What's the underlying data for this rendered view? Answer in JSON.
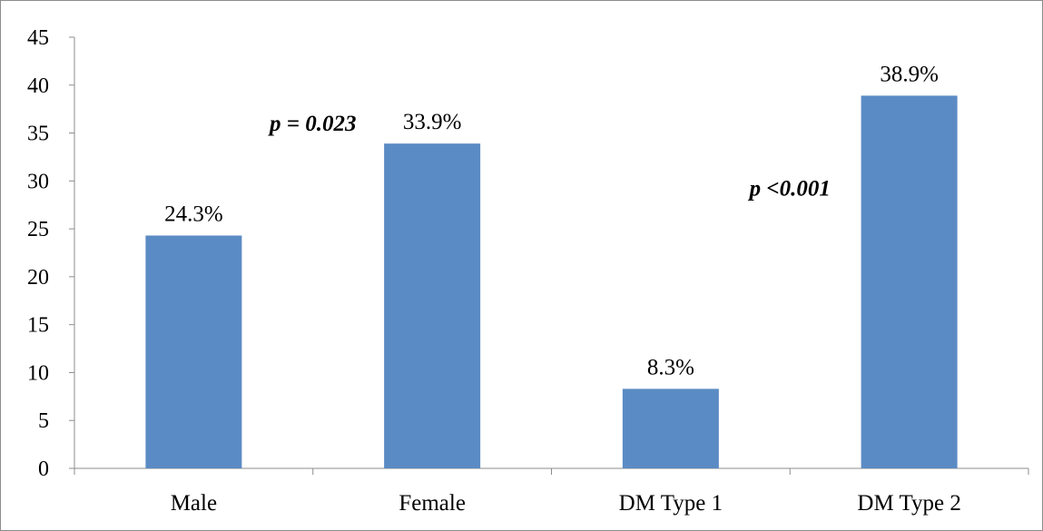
{
  "chart_data": {
    "type": "bar",
    "title": "",
    "xlabel": "",
    "ylabel": "",
    "categories": [
      "Male",
      "Female",
      "DM Type 1",
      "DM Type 2"
    ],
    "values": [
      24.3,
      33.9,
      8.3,
      38.9
    ],
    "data_labels": [
      "24.3%",
      "33.9%",
      "8.3%",
      "38.9%"
    ],
    "ylim": [
      0,
      45
    ],
    "yticks": [
      0,
      5,
      10,
      15,
      20,
      25,
      30,
      35,
      40,
      45
    ],
    "grid": false,
    "legend": "none",
    "bar_color": "#5B8BC4",
    "annotations": [
      {
        "text": "p = 0.023",
        "between": [
          "Male",
          "Female"
        ]
      },
      {
        "text": "p <0.001",
        "between": [
          "DM Type 1",
          "DM Type 2"
        ]
      }
    ]
  }
}
